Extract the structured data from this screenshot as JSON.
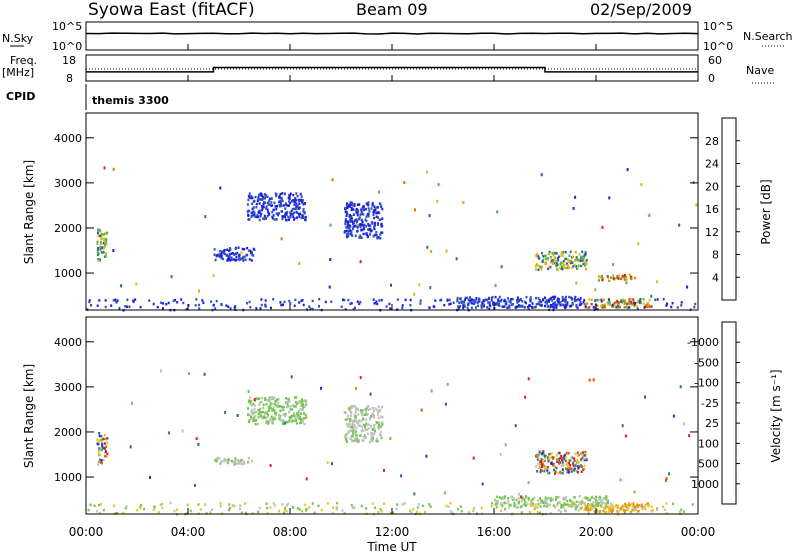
{
  "header": {
    "station": "Syowa East (fitACF)",
    "beam": "Beam 09",
    "date": "02/Sep/2009"
  },
  "top_panels": {
    "nsky_label": "N.Sky",
    "nsky_ticks": [
      "10^5",
      "10^0"
    ],
    "nsearch_label": "N.Search",
    "nsearch_ticks": [
      "10^5",
      "10^0"
    ],
    "freq_label_1": "Freq.",
    "freq_label_2": "[MHz]",
    "freq_ticks": [
      "18",
      "8"
    ],
    "nave_label": "Nave",
    "nave_ticks": [
      "60",
      "0"
    ],
    "cpid_label": "CPID",
    "cpid_value": "themis 3300"
  },
  "chart_data": [
    {
      "type": "heatmap",
      "quantity": "Power",
      "ylabel": "Slant Range [km]",
      "ylim": [
        180,
        4550
      ],
      "yticks": [
        "1000",
        "2000",
        "3000",
        "4000"
      ],
      "colorbar": {
        "label": "Power [dB]",
        "ticks": [
          "4",
          "8",
          "12",
          "16",
          "20",
          "24",
          "28"
        ],
        "colors": [
          "#1e1ee6",
          "#2f55b4",
          "#2f7a6a",
          "#4ab84a",
          "#c8c818",
          "#f0a010",
          "#e87010",
          "#e02020"
        ]
      },
      "clusters": [
        {
          "t0": 0.4,
          "t1": 0.8,
          "r0": 1300,
          "r1": 2000,
          "level": "mid"
        },
        {
          "t0": 5.0,
          "t1": 6.6,
          "r0": 1300,
          "r1": 1600,
          "level": "low"
        },
        {
          "t0": 6.3,
          "t1": 8.6,
          "r0": 2200,
          "r1": 2800,
          "level": "low"
        },
        {
          "t0": 10.1,
          "t1": 11.6,
          "r0": 1800,
          "r1": 2600,
          "level": "low"
        },
        {
          "t0": 17.6,
          "t1": 19.6,
          "r0": 1100,
          "r1": 1500,
          "level": "mid"
        },
        {
          "t0": 19.5,
          "t1": 22.2,
          "r0": 250,
          "r1": 450,
          "level": "high"
        },
        {
          "t0": 20.0,
          "t1": 21.5,
          "r0": 850,
          "r1": 1000,
          "level": "high"
        },
        {
          "t0": 14.5,
          "t1": 19.5,
          "r0": 250,
          "r1": 500,
          "level": "low"
        }
      ]
    },
    {
      "type": "heatmap",
      "quantity": "Velocity",
      "ylabel": "Slant Range [km]",
      "ylim": [
        180,
        4550
      ],
      "yticks": [
        "1000",
        "2000",
        "3000",
        "4000"
      ],
      "colorbar": {
        "label": "Velocity [m s⁻¹]",
        "ticks": [
          "1000",
          "500",
          "100",
          "25",
          "-25",
          "-100",
          "-500",
          "-1000"
        ],
        "colors": [
          "#1e2ee6",
          "#2f55b4",
          "#2f7a6a",
          "#6ec846",
          "#c0c0c0",
          "#f0c020",
          "#f08818",
          "#e85010",
          "#e02020"
        ]
      },
      "clusters": [
        {
          "t0": 0.4,
          "t1": 0.8,
          "r0": 1300,
          "r1": 2000,
          "level": "mixed"
        },
        {
          "t0": 5.0,
          "t1": 6.6,
          "r0": 1300,
          "r1": 1450,
          "level": "gray"
        },
        {
          "t0": 6.3,
          "t1": 8.6,
          "r0": 2200,
          "r1": 2800,
          "level": "green"
        },
        {
          "t0": 10.1,
          "t1": 11.6,
          "r0": 1800,
          "r1": 2600,
          "level": "gray"
        },
        {
          "t0": 17.6,
          "t1": 19.6,
          "r0": 1100,
          "r1": 1600,
          "level": "mixed"
        },
        {
          "t0": 19.5,
          "t1": 22.2,
          "r0": 250,
          "r1": 450,
          "level": "orange"
        },
        {
          "t0": 16.0,
          "t1": 20.5,
          "r0": 350,
          "r1": 600,
          "level": "green"
        }
      ]
    }
  ],
  "xaxis": {
    "label": "Time UT",
    "ticks": [
      "00:00",
      "04:00",
      "08:00",
      "12:00",
      "16:00",
      "20:00",
      "00:00"
    ],
    "xlim": [
      0,
      24
    ]
  }
}
